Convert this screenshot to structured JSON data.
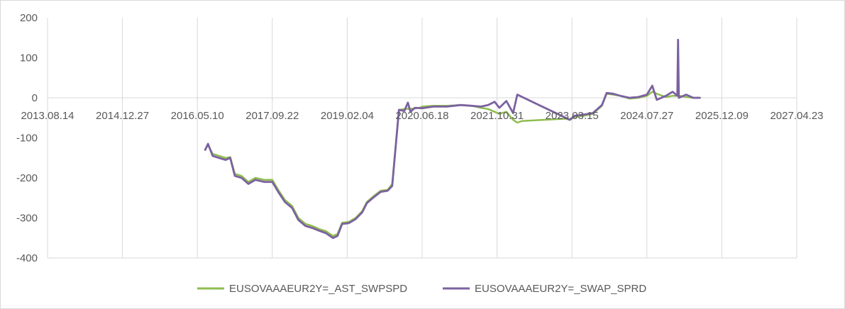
{
  "chart_data": {
    "type": "line",
    "title": "",
    "xlabel": "",
    "ylabel": "",
    "ylim": [
      -400,
      200
    ],
    "yticks": [
      200,
      100,
      0,
      -100,
      -200,
      -300,
      -400
    ],
    "ytick_labels": [
      "200",
      "100",
      "0",
      "-100",
      "-200",
      "-300",
      "-400"
    ],
    "xticks": [
      "2013-08-14",
      "2014-12-27",
      "2016-05-10",
      "2017-09-22",
      "2019-02-04",
      "2020-06-18",
      "2021-10-31",
      "2023-03-15",
      "2024-07-27",
      "2025-12-09",
      "2027-04-23"
    ],
    "xtick_labels": [
      "2013.08.14",
      "2014.12.27",
      "2016.05.10",
      "2017.09.22",
      "2019.02.04",
      "2020.06.18",
      "2021.10.31",
      "2023.03.15",
      "2024.07.27",
      "2025.12.09",
      "2027.04.23"
    ],
    "xlim": [
      "2013-08-14",
      "2027-04-23"
    ],
    "grid": "vertical",
    "legend_position": "bottom",
    "series": [
      {
        "name": "EUSOVAAAEUR2Y=_AST_SWPSPD",
        "color": "#8fbc4f",
        "points": [
          [
            "2016-07-01",
            -128
          ],
          [
            "2016-07-20",
            -118
          ],
          [
            "2016-08-20",
            -140
          ],
          [
            "2016-10-01",
            -145
          ],
          [
            "2016-11-15",
            -150
          ],
          [
            "2016-12-15",
            -148
          ],
          [
            "2017-01-15",
            -190
          ],
          [
            "2017-03-01",
            -195
          ],
          [
            "2017-04-15",
            -210
          ],
          [
            "2017-06-01",
            -200
          ],
          [
            "2017-08-01",
            -205
          ],
          [
            "2017-09-22",
            -205
          ],
          [
            "2017-11-01",
            -230
          ],
          [
            "2017-12-15",
            -255
          ],
          [
            "2018-02-01",
            -270
          ],
          [
            "2018-03-15",
            -300
          ],
          [
            "2018-05-01",
            -315
          ],
          [
            "2018-06-15",
            -320
          ],
          [
            "2018-08-01",
            -328
          ],
          [
            "2018-09-15",
            -333
          ],
          [
            "2018-11-01",
            -345
          ],
          [
            "2018-12-01",
            -340
          ],
          [
            "2019-01-01",
            -312
          ],
          [
            "2019-02-15",
            -310
          ],
          [
            "2019-04-01",
            -300
          ],
          [
            "2019-05-15",
            -283
          ],
          [
            "2019-06-15",
            -260
          ],
          [
            "2019-08-01",
            -245
          ],
          [
            "2019-09-15",
            -232
          ],
          [
            "2019-11-01",
            -230
          ],
          [
            "2019-12-01",
            -215
          ],
          [
            "2020-01-15",
            -30
          ],
          [
            "2020-02-20",
            -28
          ],
          [
            "2020-04-15",
            -27
          ],
          [
            "2020-06-01",
            -25
          ],
          [
            "2020-06-18",
            -22
          ],
          [
            "2020-09-01",
            -20
          ],
          [
            "2020-12-01",
            -20
          ],
          [
            "2021-03-01",
            -18
          ],
          [
            "2021-05-15",
            -20
          ],
          [
            "2021-07-15",
            -25
          ],
          [
            "2021-09-01",
            -28
          ],
          [
            "2021-10-15",
            -35
          ],
          [
            "2021-11-15",
            -40
          ],
          [
            "2022-01-01",
            -35
          ],
          [
            "2022-02-15",
            -55
          ],
          [
            "2022-03-15",
            -62
          ],
          [
            "2022-04-15",
            -58
          ],
          [
            "2023-02-01",
            -52
          ],
          [
            "2023-03-01",
            -55
          ],
          [
            "2023-04-01",
            -48
          ],
          [
            "2023-06-01",
            -45
          ],
          [
            "2023-08-01",
            -40
          ],
          [
            "2023-10-01",
            -20
          ],
          [
            "2023-11-01",
            10
          ],
          [
            "2023-12-15",
            8
          ],
          [
            "2024-02-01",
            5
          ],
          [
            "2024-04-01",
            -2
          ],
          [
            "2024-06-01",
            0
          ],
          [
            "2024-07-27",
            5
          ],
          [
            "2024-09-01",
            15
          ],
          [
            "2024-10-15",
            8
          ],
          [
            "2024-12-01",
            2
          ],
          [
            "2025-01-15",
            5
          ],
          [
            "2025-03-01",
            5
          ],
          [
            "2025-04-15",
            2
          ],
          [
            "2025-06-01",
            0
          ],
          [
            "2025-07-15",
            0
          ]
        ]
      },
      {
        "name": "EUSOVAAAEUR2Y=_SWAP_SPRD",
        "color": "#7b61a0",
        "points": [
          [
            "2016-07-01",
            -130
          ],
          [
            "2016-07-20",
            -115
          ],
          [
            "2016-08-20",
            -145
          ],
          [
            "2016-10-01",
            -150
          ],
          [
            "2016-11-15",
            -155
          ],
          [
            "2016-12-15",
            -150
          ],
          [
            "2017-01-15",
            -195
          ],
          [
            "2017-03-01",
            -200
          ],
          [
            "2017-04-15",
            -215
          ],
          [
            "2017-06-01",
            -205
          ],
          [
            "2017-08-01",
            -210
          ],
          [
            "2017-09-22",
            -210
          ],
          [
            "2017-11-01",
            -235
          ],
          [
            "2017-12-15",
            -260
          ],
          [
            "2018-02-01",
            -275
          ],
          [
            "2018-03-15",
            -305
          ],
          [
            "2018-05-01",
            -320
          ],
          [
            "2018-06-15",
            -325
          ],
          [
            "2018-08-01",
            -332
          ],
          [
            "2018-09-15",
            -338
          ],
          [
            "2018-11-01",
            -350
          ],
          [
            "2018-12-01",
            -345
          ],
          [
            "2019-01-01",
            -315
          ],
          [
            "2019-02-15",
            -313
          ],
          [
            "2019-04-01",
            -303
          ],
          [
            "2019-05-15",
            -286
          ],
          [
            "2019-06-15",
            -263
          ],
          [
            "2019-08-01",
            -248
          ],
          [
            "2019-09-15",
            -235
          ],
          [
            "2019-11-01",
            -232
          ],
          [
            "2019-12-01",
            -220
          ],
          [
            "2020-01-15",
            -30
          ],
          [
            "2020-02-20",
            -33
          ],
          [
            "2020-03-15",
            -12
          ],
          [
            "2020-04-01",
            -35
          ],
          [
            "2020-05-01",
            -25
          ],
          [
            "2020-06-18",
            -26
          ],
          [
            "2020-09-01",
            -22
          ],
          [
            "2020-12-01",
            -22
          ],
          [
            "2021-03-01",
            -18
          ],
          [
            "2021-05-15",
            -20
          ],
          [
            "2021-07-15",
            -22
          ],
          [
            "2021-09-01",
            -18
          ],
          [
            "2021-10-15",
            -10
          ],
          [
            "2021-11-15",
            -25
          ],
          [
            "2022-01-01",
            -8
          ],
          [
            "2022-02-15",
            -38
          ],
          [
            "2022-03-15",
            8
          ],
          [
            "2023-02-01",
            -50
          ],
          [
            "2023-03-01",
            -55
          ],
          [
            "2023-04-01",
            -45
          ],
          [
            "2023-06-01",
            -42
          ],
          [
            "2023-08-01",
            -38
          ],
          [
            "2023-10-01",
            -18
          ],
          [
            "2023-11-01",
            12
          ],
          [
            "2023-12-15",
            10
          ],
          [
            "2024-02-01",
            5
          ],
          [
            "2024-04-01",
            0
          ],
          [
            "2024-06-01",
            2
          ],
          [
            "2024-07-27",
            8
          ],
          [
            "2024-09-01",
            30
          ],
          [
            "2024-10-01",
            -5
          ],
          [
            "2024-12-01",
            5
          ],
          [
            "2025-01-15",
            15
          ],
          [
            "2025-02-15",
            5
          ],
          [
            "2025-02-20",
            145
          ],
          [
            "2025-02-25",
            0
          ],
          [
            "2025-04-15",
            8
          ],
          [
            "2025-06-01",
            0
          ],
          [
            "2025-07-15",
            0
          ]
        ]
      }
    ]
  }
}
